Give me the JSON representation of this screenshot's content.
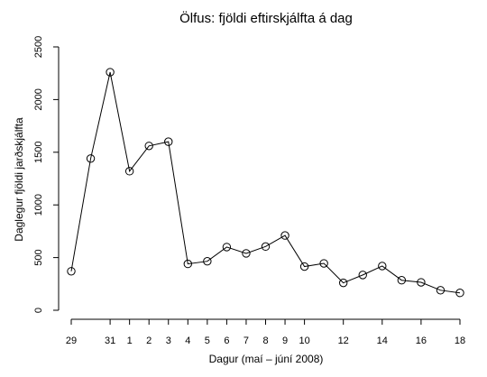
{
  "chart_data": {
    "type": "line",
    "title": "Ölfus: fjöldi eftirskjálfta á dag",
    "xlabel": "Dagur (maí – júní 2008)",
    "ylabel": "Daglegur fjöldi jarðskjálfta",
    "x": [
      29,
      30,
      31,
      1,
      2,
      3,
      4,
      5,
      6,
      7,
      8,
      9,
      10,
      11,
      12,
      13,
      14,
      15,
      16,
      17,
      18
    ],
    "x_tick_labels": [
      "29",
      "31",
      "1",
      "2",
      "3",
      "4",
      "5",
      "6",
      "7",
      "8",
      "9",
      "10",
      "12",
      "14",
      "16",
      "18"
    ],
    "x_tick_positions": [
      0,
      2,
      3,
      4,
      5,
      6,
      7,
      8,
      9,
      10,
      11,
      12,
      14,
      16,
      18,
      20
    ],
    "y_ticks": [
      "0",
      "500",
      "1000",
      "1500",
      "2000",
      "2500"
    ],
    "ylim": [
      0,
      2500
    ],
    "values": [
      370,
      1440,
      2260,
      1320,
      1560,
      1600,
      440,
      465,
      600,
      540,
      605,
      710,
      415,
      445,
      260,
      335,
      420,
      285,
      265,
      190,
      165
    ],
    "grid": false,
    "marker": "open-circle"
  }
}
